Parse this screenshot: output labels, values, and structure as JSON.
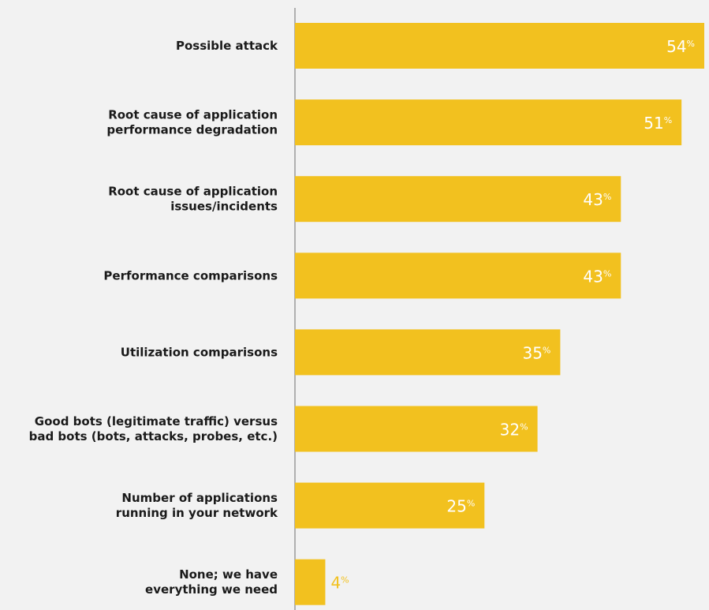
{
  "chart_data": {
    "type": "bar",
    "orientation": "horizontal",
    "categories": [
      [
        "Possible attack"
      ],
      [
        "Root cause of application",
        "performance degradation"
      ],
      [
        "Root cause of application",
        "issues/incidents"
      ],
      [
        "Performance comparisons"
      ],
      [
        "Utilization comparisons"
      ],
      [
        "Good bots (legitimate traffic) versus",
        "bad bots (bots, attacks, probes, etc.)"
      ],
      [
        "Number of applications",
        "running in your network"
      ],
      [
        "None; we have",
        "everything we need"
      ]
    ],
    "values": [
      54,
      51,
      43,
      43,
      35,
      32,
      25,
      4
    ],
    "value_suffix": "%",
    "title": "",
    "xlabel": "",
    "ylabel": "",
    "xlim": [
      0,
      54
    ],
    "grid": false,
    "legend": "none"
  },
  "colors": {
    "background": "#f2f2f2",
    "bar": "#f2c11f",
    "axis": "#999999",
    "label_text": "#1a1a1a",
    "value_inside": "#ffffff",
    "value_outside": "#f2c11f"
  }
}
